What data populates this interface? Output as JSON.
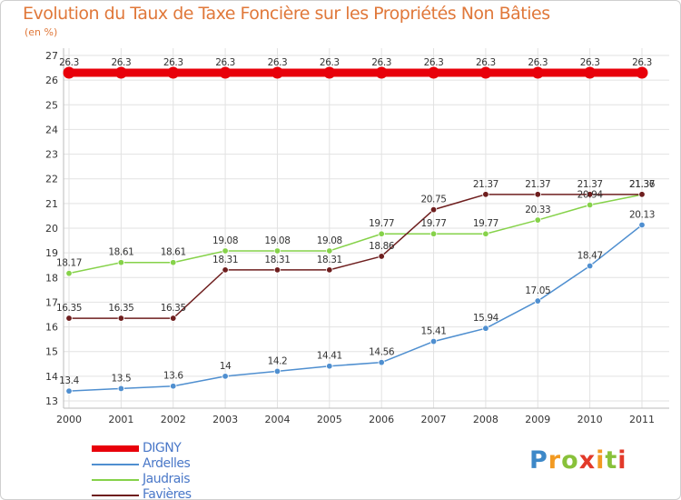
{
  "title": "Evolution du Taux de Taxe Foncière sur les Propriétés Non Bâties",
  "unit_label": "(en %)",
  "brand": "Proxiti",
  "chart_data": {
    "type": "line",
    "title": "Evolution du Taux de Taxe Foncière sur les Propriétés Non Bâties",
    "ylabel": "(en %)",
    "xlabel": "",
    "x": [
      "2000",
      "2001",
      "2002",
      "2003",
      "2004",
      "2005",
      "2006",
      "2007",
      "2008",
      "2009",
      "2010",
      "2011"
    ],
    "ylim": [
      13,
      27
    ],
    "yticks": [
      "13",
      "14",
      "15",
      "16",
      "17",
      "18",
      "19",
      "20",
      "21",
      "22",
      "23",
      "24",
      "25",
      "26",
      "27"
    ],
    "grid": true,
    "legend_position": "bottom-left",
    "series": [
      {
        "name": "DIGNY",
        "color": "#e8000a",
        "values": [
          26.3,
          26.3,
          26.3,
          26.3,
          26.3,
          26.3,
          26.3,
          26.3,
          26.3,
          26.3,
          26.3,
          26.3
        ],
        "labels": [
          "26.3",
          "26.3",
          "26.3",
          "26.3",
          "26.3",
          "26.3",
          "26.3",
          "26.3",
          "26.3",
          "26.3",
          "26.3",
          "26.3"
        ]
      },
      {
        "name": "Ardelles",
        "color": "#4f8fd0",
        "values": [
          13.4,
          13.5,
          13.6,
          14,
          14.2,
          14.41,
          14.56,
          15.41,
          15.94,
          17.05,
          18.47,
          20.13
        ],
        "labels": [
          "13.4",
          "13.5",
          "13.6",
          "14",
          "14.2",
          "14.41",
          "14.56",
          "15.41",
          "15.94",
          "17.05",
          "18.47",
          "20.13"
        ]
      },
      {
        "name": "Jaudrais",
        "color": "#86d24a",
        "values": [
          18.17,
          18.61,
          18.61,
          19.08,
          19.08,
          19.08,
          19.77,
          19.77,
          19.77,
          20.33,
          20.94,
          21.36
        ],
        "labels": [
          "18.17",
          "18.61",
          "18.61",
          "19.08",
          "19.08",
          "19.08",
          "19.77",
          "19.77",
          "19.77",
          "20.33",
          "20.94",
          "21.36"
        ]
      },
      {
        "name": "Favières",
        "color": "#6e1e1e",
        "values": [
          16.35,
          16.35,
          16.35,
          18.31,
          18.31,
          18.31,
          18.86,
          20.75,
          21.37,
          21.37,
          21.37,
          21.37
        ],
        "labels": [
          "16.35",
          "16.35",
          "16.35",
          "18.31",
          "18.31",
          "18.31",
          "18.86",
          "20.75",
          "21.37",
          "21.37",
          "21.37",
          "21.37"
        ]
      }
    ]
  }
}
